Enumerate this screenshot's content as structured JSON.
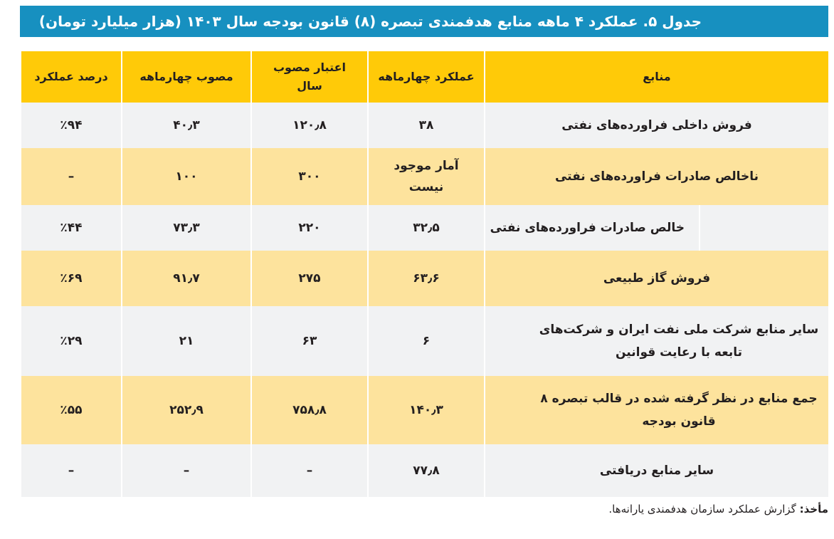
{
  "title": "جدول ۵. عملکرد ۴ ماهه منابع هدفمندی تبصره (۸) قانون بودجه سال ۱۴۰۳ (هزار میلیارد تومان)",
  "headers": {
    "source": "منابع",
    "four_month_perf": "عملکرد چهارماهه",
    "annual_approved": "اعتبار مصوب سال",
    "four_month_approved": "مصوب چهارماهه",
    "perf_percent": "درصد عملکرد"
  },
  "rows": [
    {
      "source": "فروش داخلی فراورده‌های نفتی",
      "perf": "۳۸",
      "annual": "۱۲۰٫۸",
      "approved4": "۴۰٫۳",
      "percent": "٪۹۴"
    },
    {
      "source": "ناخالص صادرات فراورده‌های نفتی",
      "perf": "آمار موجود نیست",
      "annual": "۳۰۰",
      "approved4": "۱۰۰",
      "percent": "–"
    },
    {
      "source": "خالص صادرات فراورده‌های نفتی",
      "perf": "۳۲٫۵",
      "annual": "۲۲۰",
      "approved4": "۷۳٫۳",
      "percent": "٪۴۴"
    },
    {
      "source": "فروش گاز طبیعی",
      "perf": "۶۳٫۶",
      "annual": "۲۷۵",
      "approved4": "۹۱٫۷",
      "percent": "٪۶۹"
    },
    {
      "source": "سایر منابع شرکت ملی نفت ایران و شرکت‌های تابعه با رعایت قوانین",
      "perf": "۶",
      "annual": "۶۳",
      "approved4": "۲۱",
      "percent": "٪۲۹"
    },
    {
      "source": "جمع منابع در نظر گرفته شده در قالب تبصره ۸ قانون بودجه",
      "perf": "۱۴۰٫۳",
      "annual": "۷۵۸٫۸",
      "approved4": "۲۵۲٫۹",
      "percent": "٪۵۵"
    },
    {
      "source": "سایر منابع دریافتی",
      "perf": "۷۷٫۸",
      "annual": "–",
      "approved4": "–",
      "percent": "–"
    }
  ],
  "footer": {
    "label": "مأخذ:",
    "text": "گزارش عملکرد سازمان هدفمندی یارانه‌ها."
  }
}
